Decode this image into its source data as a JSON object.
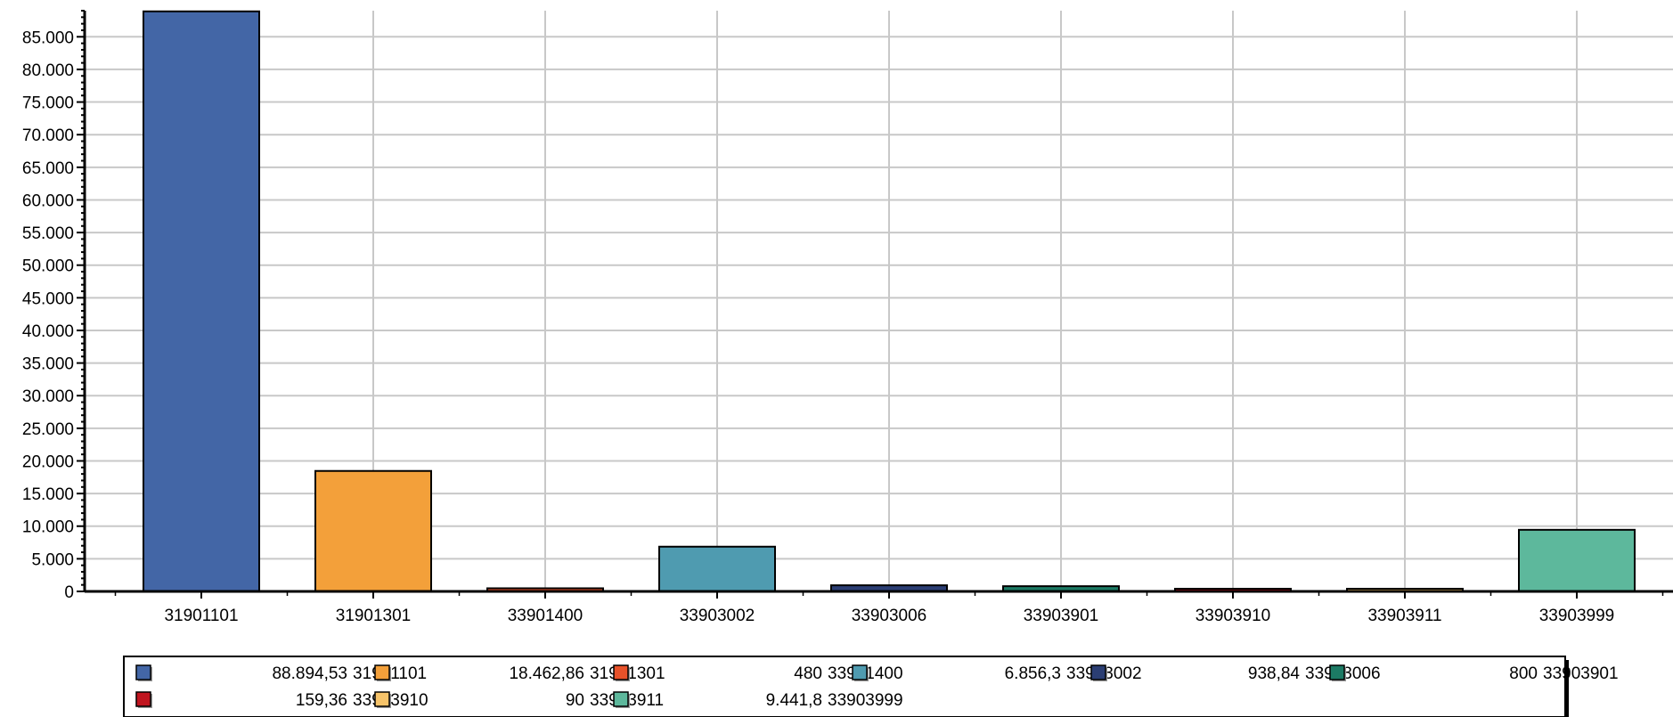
{
  "chart_data": {
    "type": "bar",
    "title": "",
    "xlabel": "",
    "ylabel": "",
    "categories": [
      "31901101",
      "31901301",
      "33901400",
      "33903002",
      "33903006",
      "33903901",
      "33903910",
      "33903911",
      "33903999"
    ],
    "values": [
      88894.53,
      18462.86,
      480,
      6856.3,
      938.84,
      800,
      159.36,
      90,
      9441.8
    ],
    "value_labels": [
      "88.894,53",
      "18.462,86",
      "480",
      "6.856,3",
      "938,84",
      "800",
      "159,36",
      "90",
      "9.441,8"
    ],
    "colors": [
      "#4366a6",
      "#f3a03a",
      "#e8522a",
      "#4f9bb0",
      "#2b3e73",
      "#1c7a64",
      "#c0151f",
      "#f7c46a",
      "#5db89c"
    ],
    "ylim": [
      0,
      89000
    ],
    "yticks": [
      0,
      5000,
      10000,
      15000,
      20000,
      25000,
      30000,
      35000,
      40000,
      45000,
      50000,
      55000,
      60000,
      65000,
      70000,
      75000,
      80000,
      85000
    ],
    "ytick_labels": [
      "0",
      "5.000",
      "10.000",
      "15.000",
      "20.000",
      "25.000",
      "30.000",
      "35.000",
      "40.000",
      "45.000",
      "50.000",
      "55.000",
      "60.000",
      "65.000",
      "70.000",
      "75.000",
      "80.000",
      "85.000"
    ],
    "grid": true,
    "legend": "bottom"
  }
}
